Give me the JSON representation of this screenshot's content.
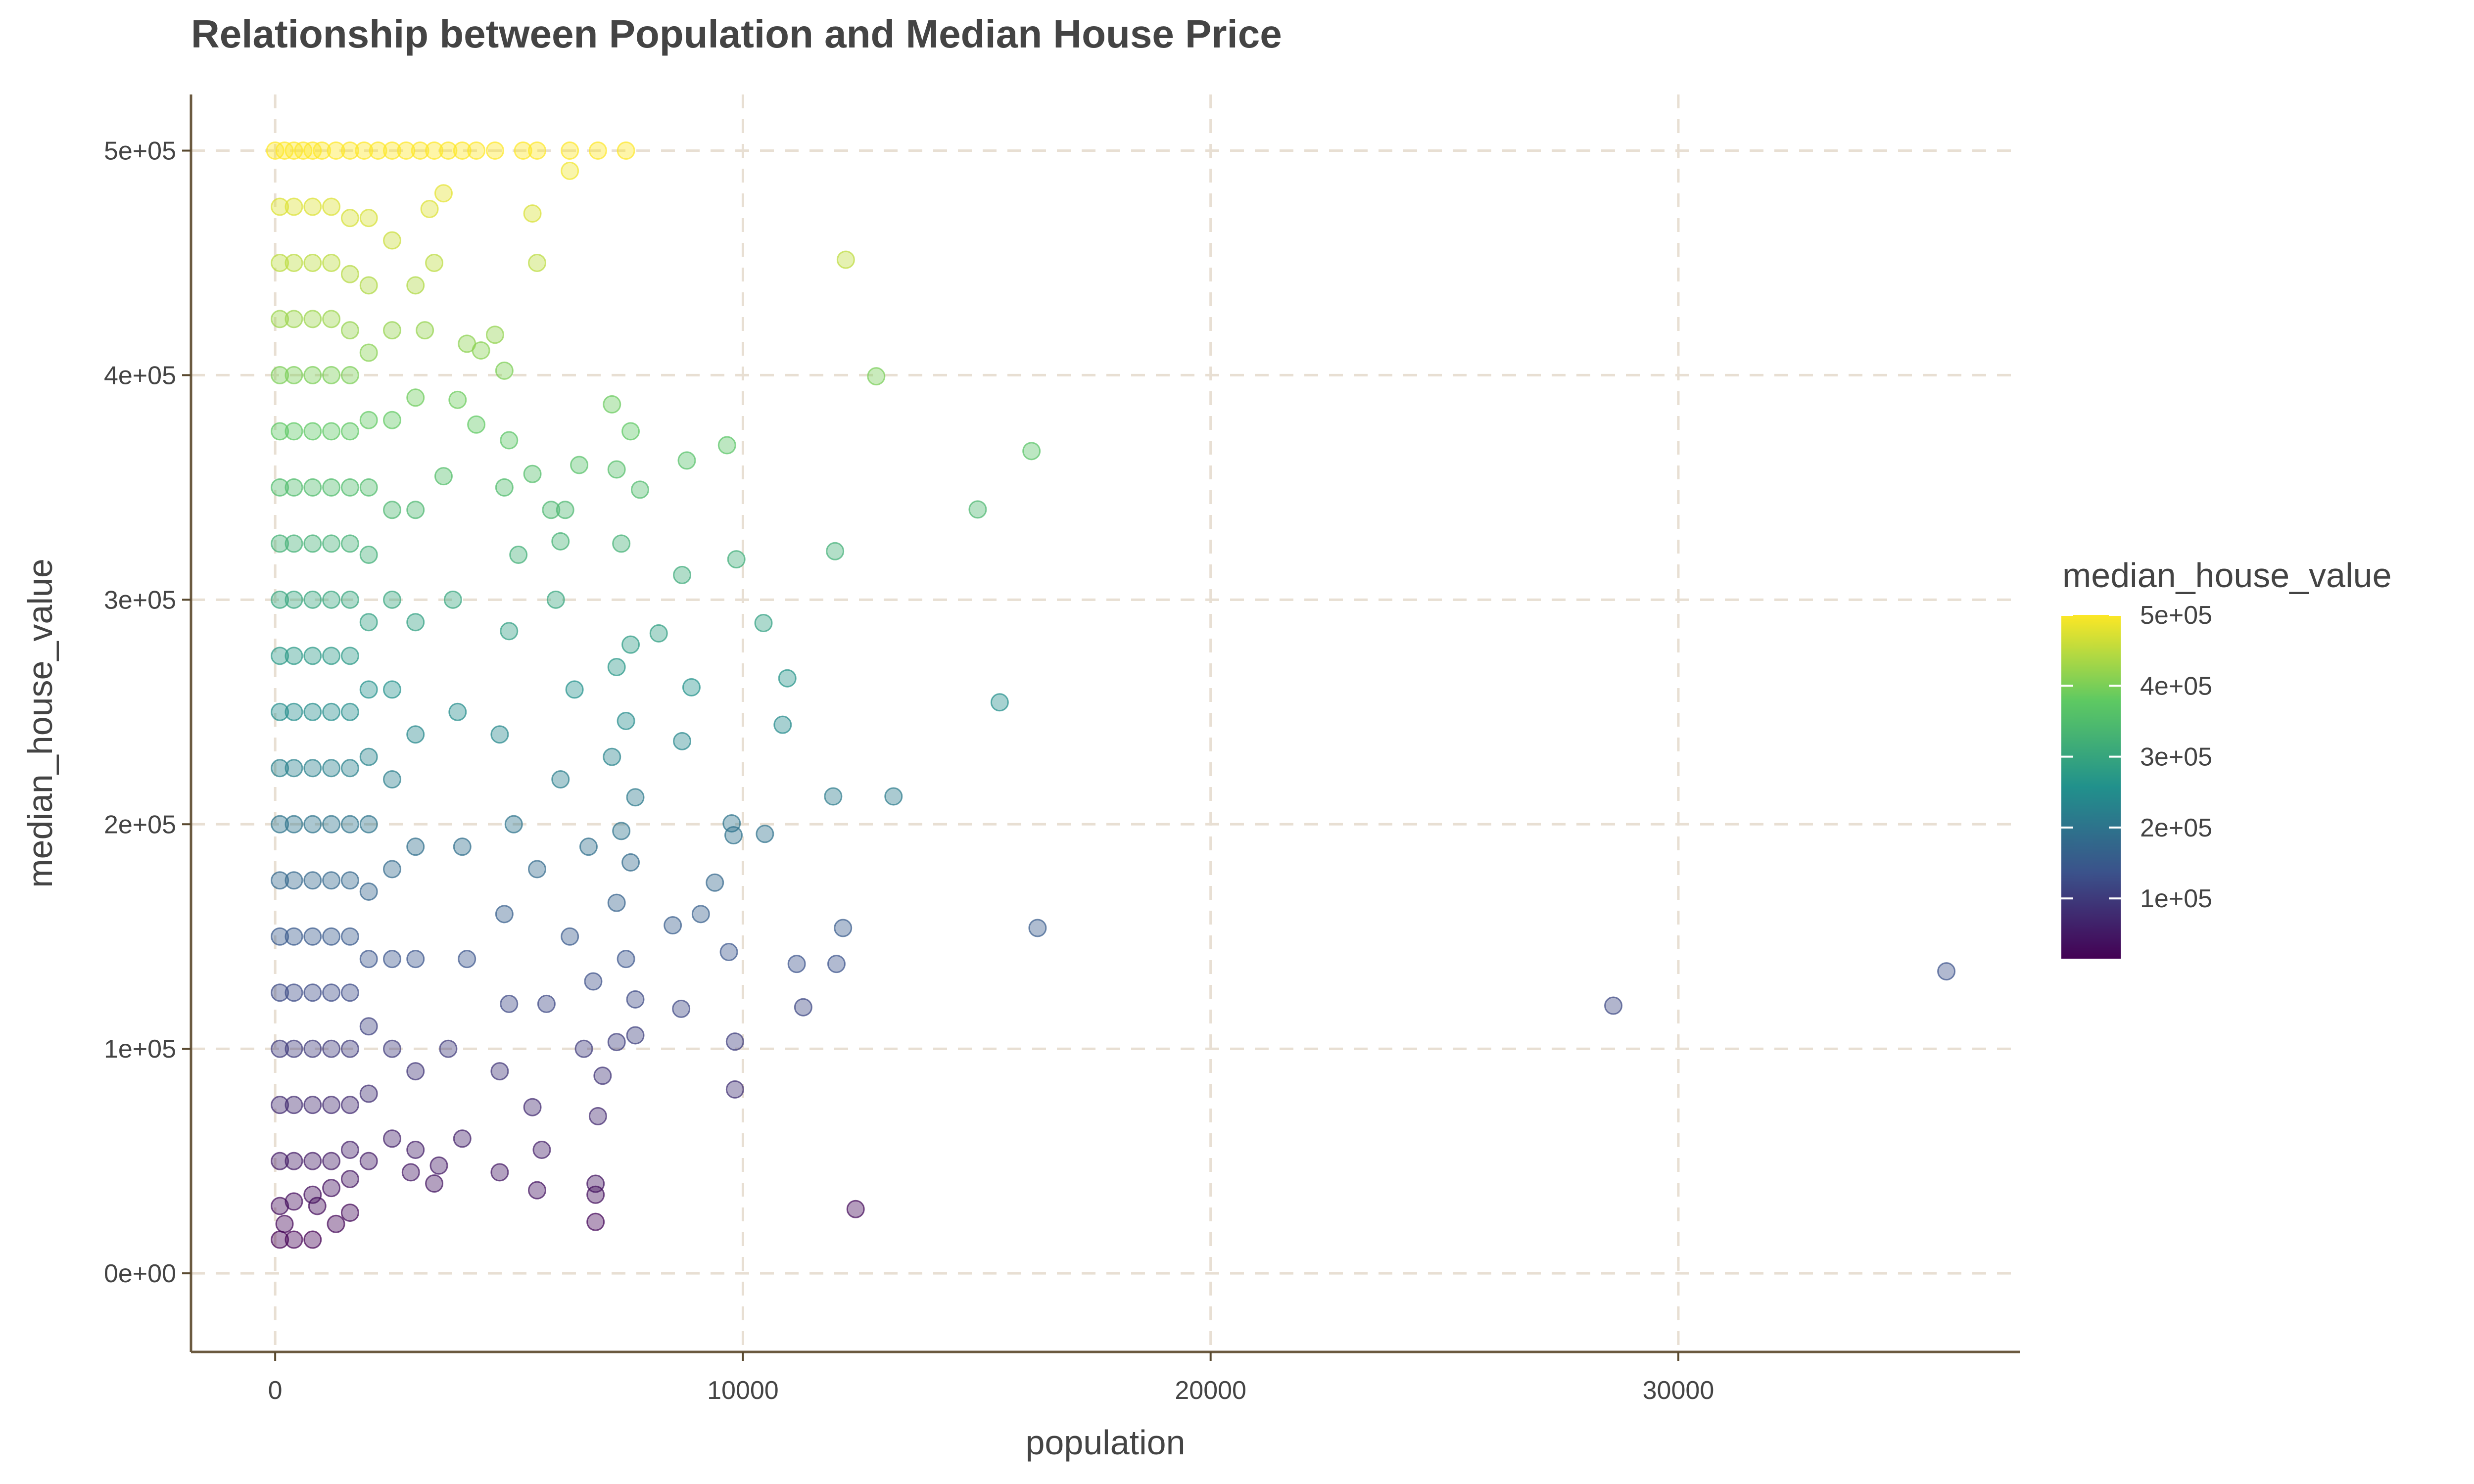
{
  "chart_data": {
    "type": "scatter",
    "title": "Relationship between Population and Median House Price",
    "xlabel": "population",
    "ylabel": "median_house_value",
    "xlim": [
      -1800,
      37300
    ],
    "ylim": [
      -35000,
      525000
    ],
    "x_ticks": [
      0,
      10000,
      20000,
      30000
    ],
    "x_tick_labels": [
      "0",
      "10000",
      "20000",
      "30000"
    ],
    "y_ticks": [
      0,
      100000,
      200000,
      300000,
      400000,
      500000
    ],
    "y_tick_labels": [
      "0e+00",
      "1e+05",
      "2e+05",
      "3e+05",
      "4e+05",
      "5e+05"
    ],
    "grid": true,
    "color_scale": {
      "title": "median_house_value",
      "palette": "viridis",
      "colors": [
        "#440154",
        "#3b528b",
        "#21918c",
        "#5ec962",
        "#fde725"
      ],
      "range": [
        14999,
        500001
      ],
      "ticks": [
        100000,
        200000,
        300000,
        400000,
        500000
      ],
      "tick_labels": [
        "1e+05",
        "2e+05",
        "3e+05",
        "4e+05",
        "5e+05"
      ],
      "legend_position": "right"
    },
    "point_alpha": 0.4,
    "points": [
      [
        28610,
        119200
      ],
      [
        35730,
        134500
      ],
      [
        16300,
        153800
      ],
      [
        16170,
        366200
      ],
      [
        15020,
        340200
      ],
      [
        15490,
        254300
      ],
      [
        12850,
        399500
      ],
      [
        12200,
        451400
      ],
      [
        11970,
        321600
      ],
      [
        11930,
        212400
      ],
      [
        13220,
        212400
      ],
      [
        12140,
        153800
      ],
      [
        12000,
        137800
      ],
      [
        11150,
        137800
      ],
      [
        11290,
        118500
      ],
      [
        12410,
        28600
      ],
      [
        10950,
        265000
      ],
      [
        10850,
        244300
      ],
      [
        10470,
        195700
      ],
      [
        10440,
        289600
      ],
      [
        9860,
        318000
      ],
      [
        9660,
        368800
      ],
      [
        9760,
        200400
      ],
      [
        9800,
        195100
      ],
      [
        9830,
        103200
      ],
      [
        9830,
        81900
      ],
      [
        9700,
        143100
      ],
      [
        9400,
        174000
      ],
      [
        9100,
        160000
      ],
      [
        8800,
        362000
      ],
      [
        8680,
        117800
      ],
      [
        8700,
        311000
      ],
      [
        8900,
        261000
      ],
      [
        8700,
        237000
      ],
      [
        8500,
        155000
      ],
      [
        8200,
        285000
      ],
      [
        7800,
        349000
      ],
      [
        7600,
        375000
      ],
      [
        7200,
        387000
      ],
      [
        7300,
        358000
      ],
      [
        7400,
        325000
      ],
      [
        7600,
        280000
      ],
      [
        7300,
        270000
      ],
      [
        7500,
        246000
      ],
      [
        7200,
        230000
      ],
      [
        7700,
        212000
      ],
      [
        7400,
        197000
      ],
      [
        7600,
        183000
      ],
      [
        7300,
        165000
      ],
      [
        7500,
        140000
      ],
      [
        7700,
        122000
      ],
      [
        7300,
        103000
      ],
      [
        7700,
        106000
      ],
      [
        6900,
        70000
      ],
      [
        6850,
        39900
      ],
      [
        6850,
        35000
      ],
      [
        6850,
        22900
      ],
      [
        6500,
        360000
      ],
      [
        6200,
        340000
      ],
      [
        6100,
        326000
      ],
      [
        6000,
        300000
      ],
      [
        6400,
        260000
      ],
      [
        6100,
        220000
      ],
      [
        6700,
        190000
      ],
      [
        6300,
        150000
      ],
      [
        6800,
        130000
      ],
      [
        6600,
        100000
      ],
      [
        7000,
        88000
      ],
      [
        5600,
        37000
      ],
      [
        5700,
        55000
      ],
      [
        5500,
        74000
      ],
      [
        5800,
        120000
      ],
      [
        5600,
        180000
      ],
      [
        5500,
        356000
      ],
      [
        5900,
        340000
      ],
      [
        5000,
        371000
      ],
      [
        4900,
        402000
      ],
      [
        4700,
        418000
      ],
      [
        4400,
        411000
      ],
      [
        4100,
        414000
      ],
      [
        4300,
        378000
      ],
      [
        4900,
        350000
      ],
      [
        5200,
        320000
      ],
      [
        5000,
        286000
      ],
      [
        4800,
        240000
      ],
      [
        5100,
        200000
      ],
      [
        4900,
        160000
      ],
      [
        5000,
        120000
      ],
      [
        4800,
        90000
      ],
      [
        4800,
        45000
      ],
      [
        4000,
        60000
      ],
      [
        3400,
        40000
      ],
      [
        3500,
        48000
      ],
      [
        2900,
        45000
      ],
      [
        3900,
        389000
      ],
      [
        3600,
        355000
      ],
      [
        3800,
        300000
      ],
      [
        3900,
        250000
      ],
      [
        4000,
        190000
      ],
      [
        4100,
        140000
      ],
      [
        3700,
        100000
      ],
      [
        3200,
        420000
      ],
      [
        3400,
        450000
      ],
      [
        3300,
        474000
      ],
      [
        3600,
        481000
      ],
      [
        5500,
        472000
      ],
      [
        5600,
        450000
      ],
      [
        6300,
        491000
      ],
      [
        0,
        500001
      ],
      [
        200,
        500001
      ],
      [
        400,
        500001
      ],
      [
        600,
        500001
      ],
      [
        800,
        500001
      ],
      [
        1000,
        500001
      ],
      [
        1300,
        500001
      ],
      [
        1600,
        500001
      ],
      [
        1900,
        500001
      ],
      [
        2200,
        500001
      ],
      [
        2500,
        500001
      ],
      [
        2800,
        500001
      ],
      [
        3100,
        500001
      ],
      [
        3400,
        500001
      ],
      [
        3700,
        500001
      ],
      [
        4000,
        500001
      ],
      [
        4300,
        500001
      ],
      [
        4700,
        500001
      ],
      [
        5300,
        500001
      ],
      [
        5600,
        500001
      ],
      [
        6300,
        500001
      ],
      [
        6900,
        500001
      ],
      [
        7500,
        500001
      ],
      [
        100,
        15000
      ],
      [
        400,
        15000
      ],
      [
        800,
        15000
      ],
      [
        200,
        22000
      ],
      [
        1300,
        22000
      ],
      [
        1600,
        27000
      ],
      [
        900,
        30000
      ],
      [
        100,
        475000
      ],
      [
        100,
        450000
      ],
      [
        100,
        425000
      ],
      [
        100,
        400000
      ],
      [
        100,
        375000
      ],
      [
        100,
        350000
      ],
      [
        100,
        325000
      ],
      [
        100,
        300000
      ],
      [
        100,
        275000
      ],
      [
        100,
        250000
      ],
      [
        100,
        225000
      ],
      [
        100,
        200000
      ],
      [
        100,
        175000
      ],
      [
        100,
        150000
      ],
      [
        100,
        125000
      ],
      [
        100,
        100000
      ],
      [
        100,
        75000
      ],
      [
        100,
        50000
      ],
      [
        100,
        30000
      ],
      [
        400,
        475000
      ],
      [
        400,
        450000
      ],
      [
        400,
        425000
      ],
      [
        400,
        400000
      ],
      [
        400,
        375000
      ],
      [
        400,
        350000
      ],
      [
        400,
        325000
      ],
      [
        400,
        300000
      ],
      [
        400,
        275000
      ],
      [
        400,
        250000
      ],
      [
        400,
        225000
      ],
      [
        400,
        200000
      ],
      [
        400,
        175000
      ],
      [
        400,
        150000
      ],
      [
        400,
        125000
      ],
      [
        400,
        100000
      ],
      [
        400,
        75000
      ],
      [
        400,
        50000
      ],
      [
        400,
        32000
      ],
      [
        800,
        475000
      ],
      [
        800,
        450000
      ],
      [
        800,
        425000
      ],
      [
        800,
        400000
      ],
      [
        800,
        375000
      ],
      [
        800,
        350000
      ],
      [
        800,
        325000
      ],
      [
        800,
        300000
      ],
      [
        800,
        275000
      ],
      [
        800,
        250000
      ],
      [
        800,
        225000
      ],
      [
        800,
        200000
      ],
      [
        800,
        175000
      ],
      [
        800,
        150000
      ],
      [
        800,
        125000
      ],
      [
        800,
        100000
      ],
      [
        800,
        75000
      ],
      [
        800,
        50000
      ],
      [
        800,
        35000
      ],
      [
        1200,
        475000
      ],
      [
        1200,
        450000
      ],
      [
        1200,
        425000
      ],
      [
        1200,
        400000
      ],
      [
        1200,
        375000
      ],
      [
        1200,
        350000
      ],
      [
        1200,
        325000
      ],
      [
        1200,
        300000
      ],
      [
        1200,
        275000
      ],
      [
        1200,
        250000
      ],
      [
        1200,
        225000
      ],
      [
        1200,
        200000
      ],
      [
        1200,
        175000
      ],
      [
        1200,
        150000
      ],
      [
        1200,
        125000
      ],
      [
        1200,
        100000
      ],
      [
        1200,
        75000
      ],
      [
        1200,
        50000
      ],
      [
        1200,
        38000
      ],
      [
        1600,
        470000
      ],
      [
        1600,
        445000
      ],
      [
        1600,
        420000
      ],
      [
        1600,
        400000
      ],
      [
        1600,
        375000
      ],
      [
        1600,
        350000
      ],
      [
        1600,
        325000
      ],
      [
        1600,
        300000
      ],
      [
        1600,
        275000
      ],
      [
        1600,
        250000
      ],
      [
        1600,
        225000
      ],
      [
        1600,
        200000
      ],
      [
        1600,
        175000
      ],
      [
        1600,
        150000
      ],
      [
        1600,
        125000
      ],
      [
        1600,
        100000
      ],
      [
        1600,
        75000
      ],
      [
        1600,
        55000
      ],
      [
        1600,
        42000
      ],
      [
        2000,
        470000
      ],
      [
        2000,
        440000
      ],
      [
        2000,
        410000
      ],
      [
        2000,
        380000
      ],
      [
        2000,
        350000
      ],
      [
        2000,
        320000
      ],
      [
        2000,
        290000
      ],
      [
        2000,
        260000
      ],
      [
        2000,
        230000
      ],
      [
        2000,
        200000
      ],
      [
        2000,
        170000
      ],
      [
        2000,
        140000
      ],
      [
        2000,
        110000
      ],
      [
        2000,
        80000
      ],
      [
        2000,
        50000
      ],
      [
        2500,
        460000
      ],
      [
        2500,
        420000
      ],
      [
        2500,
        380000
      ],
      [
        2500,
        340000
      ],
      [
        2500,
        300000
      ],
      [
        2500,
        260000
      ],
      [
        2500,
        220000
      ],
      [
        2500,
        180000
      ],
      [
        2500,
        140000
      ],
      [
        2500,
        100000
      ],
      [
        2500,
        60000
      ],
      [
        3000,
        440000
      ],
      [
        3000,
        390000
      ],
      [
        3000,
        340000
      ],
      [
        3000,
        290000
      ],
      [
        3000,
        240000
      ],
      [
        3000,
        190000
      ],
      [
        3000,
        140000
      ],
      [
        3000,
        90000
      ],
      [
        3000,
        55000
      ]
    ]
  }
}
